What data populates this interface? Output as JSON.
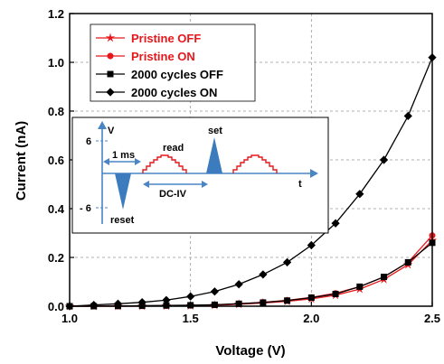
{
  "chart_data": {
    "type": "line",
    "xlabel": "Voltage (V)",
    "ylabel": "Current (nA)",
    "xlim": [
      1.0,
      2.5
    ],
    "ylim": [
      0.0,
      1.2
    ],
    "xticks": [
      "1.0",
      "1.5",
      "2.0",
      "2.5"
    ],
    "yticks": [
      "0.0",
      "0.2",
      "0.4",
      "0.6",
      "0.8",
      "1.0",
      "1.2"
    ],
    "grid": true,
    "legend_position": "top-left",
    "series": [
      {
        "name": "Pristine OFF",
        "color": "#e8161b",
        "marker": "star",
        "x": [
          1.0,
          1.1,
          1.2,
          1.3,
          1.4,
          1.5,
          1.6,
          1.7,
          1.8,
          1.9,
          2.0,
          2.1,
          2.2,
          2.3,
          2.4,
          2.5
        ],
        "y": [
          0.0,
          0.0,
          0.0,
          0.0,
          0.001,
          0.002,
          0.004,
          0.008,
          0.013,
          0.02,
          0.03,
          0.045,
          0.07,
          0.11,
          0.17,
          0.27
        ]
      },
      {
        "name": "Pristine ON",
        "color": "#e8161b",
        "marker": "circle",
        "x": [
          1.0,
          1.1,
          1.2,
          1.3,
          1.4,
          1.5,
          1.6,
          1.7,
          1.8,
          1.9,
          2.0,
          2.1,
          2.2,
          2.3,
          2.4,
          2.5
        ],
        "y": [
          0.0,
          0.0,
          0.0,
          0.001,
          0.002,
          0.003,
          0.005,
          0.01,
          0.016,
          0.024,
          0.036,
          0.053,
          0.08,
          0.12,
          0.18,
          0.29
        ]
      },
      {
        "name": "2000 cycles OFF",
        "color": "#000000",
        "marker": "square",
        "x": [
          1.0,
          1.1,
          1.2,
          1.3,
          1.4,
          1.5,
          1.6,
          1.7,
          1.8,
          1.9,
          2.0,
          2.1,
          2.2,
          2.3,
          2.4,
          2.5
        ],
        "y": [
          0.0,
          0.0,
          0.001,
          0.002,
          0.003,
          0.004,
          0.006,
          0.01,
          0.015,
          0.023,
          0.035,
          0.05,
          0.08,
          0.12,
          0.18,
          0.26
        ]
      },
      {
        "name": "2000 cycles ON",
        "color": "#000000",
        "marker": "diamond",
        "x": [
          1.0,
          1.1,
          1.2,
          1.3,
          1.4,
          1.5,
          1.6,
          1.7,
          1.8,
          1.9,
          2.0,
          2.1,
          2.2,
          2.3,
          2.4,
          2.5
        ],
        "y": [
          0.0,
          0.005,
          0.01,
          0.016,
          0.025,
          0.04,
          0.06,
          0.09,
          0.13,
          0.18,
          0.25,
          0.34,
          0.46,
          0.6,
          0.78,
          1.02
        ]
      }
    ],
    "inset": {
      "labels": {
        "v_axis": "V",
        "t_axis": "t",
        "plus6": "6",
        "minus6": "- 6",
        "one_ms": "1 ms",
        "read": "read",
        "set": "set",
        "dciv": "DC-IV",
        "reset": "reset"
      }
    }
  }
}
